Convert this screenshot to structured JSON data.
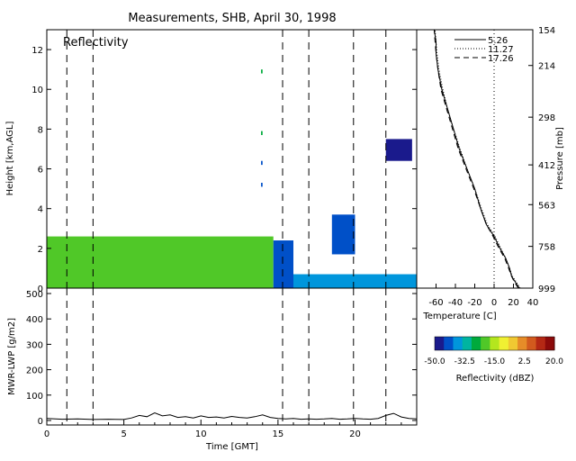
{
  "figure": {
    "title": "Measurements, SHB, April 30, 1998"
  },
  "chart_data": [
    {
      "type": "heatmap",
      "panel_label": "Reflectivity",
      "xlabel": "",
      "ylabel": "Height [km,AGL]",
      "xlim": [
        0,
        24
      ],
      "ylim": [
        0,
        13
      ],
      "y_ticks": [
        0,
        2,
        4,
        6,
        8,
        10,
        12
      ],
      "event_lines_gmt": [
        1.3,
        3.0,
        15.3,
        17.0,
        19.9,
        22.0
      ],
      "echo_regions": [
        {
          "t_start": 0.0,
          "t_end": 14.7,
          "z_bottom": 0.0,
          "z_top": 2.6,
          "dbz": -20
        },
        {
          "t_start": 14.7,
          "t_end": 16.0,
          "z_bottom": 0.0,
          "z_top": 2.4,
          "dbz": -40
        },
        {
          "t_start": 16.0,
          "t_end": 24.0,
          "z_bottom": 0.0,
          "z_top": 0.7,
          "dbz": -35
        },
        {
          "t_start": 18.5,
          "t_end": 20.0,
          "z_bottom": 1.7,
          "z_top": 3.7,
          "dbz": -40
        },
        {
          "t_start": 22.0,
          "t_end": 23.7,
          "z_bottom": 6.4,
          "z_top": 7.5,
          "dbz": -45
        },
        {
          "t_start": 13.9,
          "t_end": 14.0,
          "z_bottom": 10.8,
          "z_top": 11.0,
          "dbz": -25
        },
        {
          "t_start": 13.9,
          "t_end": 14.0,
          "z_bottom": 7.7,
          "z_top": 7.9,
          "dbz": -25
        },
        {
          "t_start": 13.9,
          "t_end": 14.0,
          "z_bottom": 6.2,
          "z_top": 6.4,
          "dbz": -40
        },
        {
          "t_start": 13.9,
          "t_end": 14.0,
          "z_bottom": 5.1,
          "z_top": 5.3,
          "dbz": -40
        }
      ]
    },
    {
      "type": "line",
      "xlabel": "Time [GMT]",
      "ylabel": "MWR-LWP [g/m2]",
      "xlim": [
        0,
        24
      ],
      "ylim": [
        0,
        500
      ],
      "x_ticks": [
        0,
        5,
        10,
        15,
        20
      ],
      "y_ticks": [
        0,
        100,
        200,
        300,
        400,
        500
      ],
      "series": [
        {
          "x": [
            0,
            1,
            2,
            3,
            4,
            5,
            5.5,
            6,
            6.5,
            7,
            7.5,
            8,
            8.5,
            9,
            9.5,
            10,
            10.5,
            11,
            11.5,
            12,
            12.5,
            13,
            13.5,
            14,
            14.5,
            15,
            15.5,
            16,
            16.5,
            17,
            17.5,
            18,
            18.5,
            19,
            19.5,
            20,
            20.5,
            21,
            21.5,
            22,
            22.5,
            23,
            23.5,
            24
          ],
          "y": [
            8,
            5,
            6,
            4,
            5,
            4,
            10,
            20,
            15,
            30,
            18,
            22,
            12,
            15,
            10,
            18,
            12,
            14,
            10,
            16,
            12,
            10,
            15,
            22,
            12,
            8,
            6,
            8,
            5,
            6,
            5,
            6,
            8,
            5,
            6,
            8,
            6,
            5,
            8,
            20,
            28,
            14,
            8,
            6
          ]
        }
      ]
    },
    {
      "type": "line",
      "xlabel": "Temperature [C]",
      "ylabel": "Pressure [mb]",
      "xlim": [
        -80,
        40
      ],
      "ylim": [
        0,
        13
      ],
      "x_ticks": [
        -60,
        -40,
        -20,
        0,
        20,
        40
      ],
      "pressure_ticks": [
        {
          "z": 13.0,
          "label": "154"
        },
        {
          "z": 11.2,
          "label": "214"
        },
        {
          "z": 8.6,
          "label": "298"
        },
        {
          "z": 6.2,
          "label": "412"
        },
        {
          "z": 4.2,
          "label": "563"
        },
        {
          "z": 2.1,
          "label": "758"
        },
        {
          "z": 0.0,
          "label": "999"
        }
      ],
      "legend": [
        "5.26",
        "11.27",
        "17.26"
      ],
      "zero_line_x": 0,
      "series": [
        {
          "name": "5.26",
          "x": [
            26,
            22,
            18,
            16,
            12,
            6,
            0,
            -8,
            -14,
            -20,
            -28,
            -36,
            -42,
            -48,
            -54,
            -58,
            -60,
            -60,
            -62
          ],
          "z": [
            0,
            0.3,
            0.6,
            1.0,
            1.5,
            2.0,
            2.6,
            3.2,
            4.0,
            5.0,
            6.0,
            7.0,
            8.0,
            9.0,
            10.0,
            11.0,
            11.8,
            12.4,
            13.0
          ]
        },
        {
          "name": "11.27",
          "x": [
            27,
            23,
            19,
            16,
            12,
            7,
            1,
            -7,
            -13,
            -20,
            -28,
            -35,
            -42,
            -48,
            -53,
            -57,
            -59,
            -60,
            -61
          ],
          "z": [
            0,
            0.3,
            0.6,
            1.0,
            1.5,
            2.0,
            2.6,
            3.2,
            4.0,
            5.0,
            6.0,
            7.0,
            8.0,
            9.0,
            10.0,
            11.0,
            11.8,
            12.4,
            13.0
          ]
        },
        {
          "name": "17.26",
          "x": [
            25,
            21,
            18,
            15,
            11,
            5,
            -1,
            -8,
            -14,
            -21,
            -29,
            -37,
            -43,
            -49,
            -55,
            -58,
            -60,
            -61,
            -62
          ],
          "z": [
            0,
            0.3,
            0.6,
            1.0,
            1.5,
            2.0,
            2.6,
            3.2,
            4.0,
            5.0,
            6.0,
            7.0,
            8.0,
            9.0,
            10.0,
            11.0,
            11.8,
            12.4,
            13.0
          ]
        }
      ]
    }
  ],
  "colorbar": {
    "label": "Reflectivity (dBZ)",
    "range": [
      -50,
      20
    ],
    "tick_values": [
      -50,
      -32.5,
      -15,
      2.5,
      20
    ],
    "tick_labels": [
      "-50.0",
      "-32.5",
      "-15.0",
      "2.5",
      "20.0"
    ],
    "colors": [
      "#1a1a8c",
      "#0050c8",
      "#0096dc",
      "#00b4a0",
      "#00aa3c",
      "#50c828",
      "#b4e61e",
      "#f0f032",
      "#f0c832",
      "#e68c28",
      "#d25a1e",
      "#b42814",
      "#8c0a0a"
    ]
  }
}
